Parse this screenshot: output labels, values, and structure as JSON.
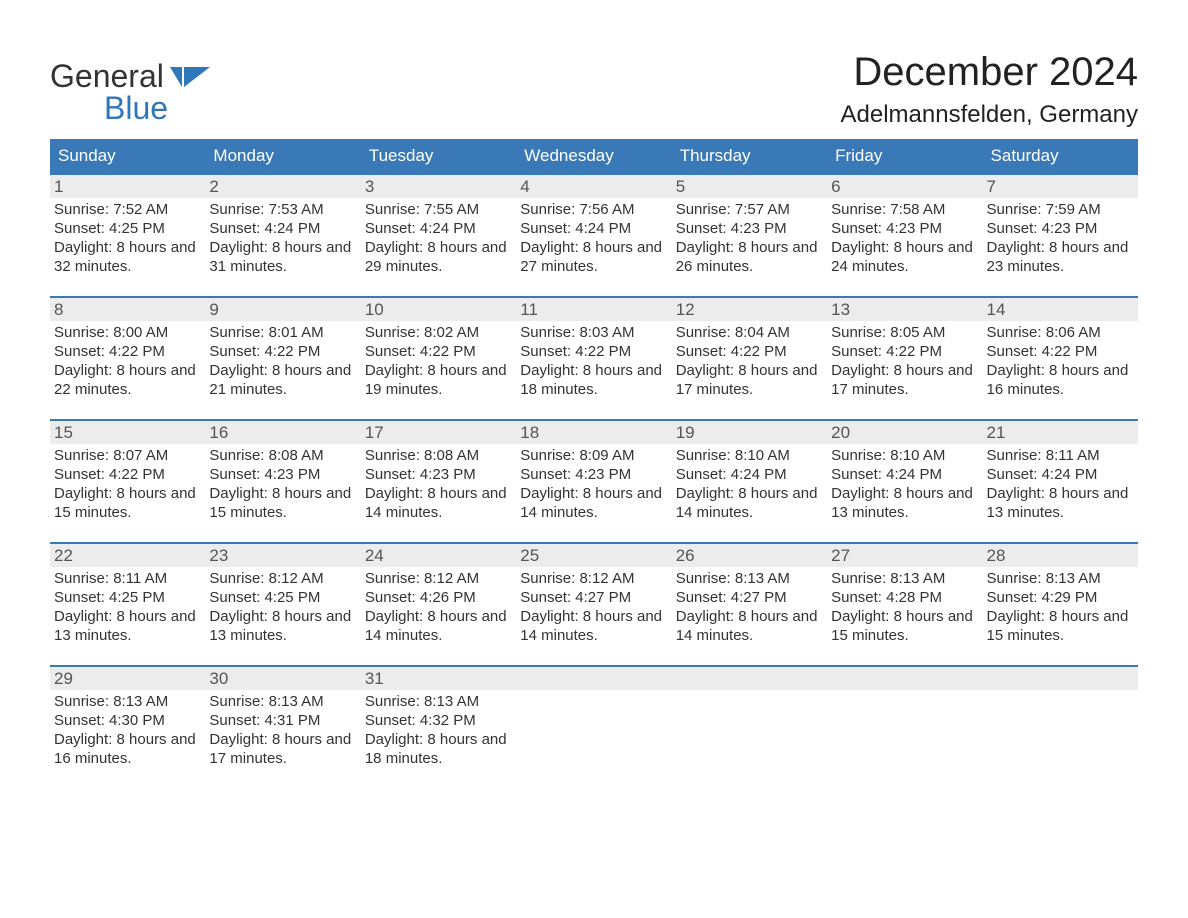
{
  "brand": {
    "word1": "General",
    "word2": "Blue",
    "accent_hex": "#2f77b8"
  },
  "header": {
    "month_title": "December 2024",
    "location": "Adelmannsfelden, Germany"
  },
  "styling": {
    "header_bg": "#3a79b7",
    "header_text": "#ffffff",
    "week_border": "#3a79b7",
    "daynum_bg": "#ececec",
    "daynum_text": "#555555",
    "body_text": "#333333",
    "page_bg": "#ffffff",
    "fontsize_title": 40,
    "fontsize_location": 24,
    "fontsize_header": 17,
    "fontsize_body": 15
  },
  "day_labels": [
    "Sunday",
    "Monday",
    "Tuesday",
    "Wednesday",
    "Thursday",
    "Friday",
    "Saturday"
  ],
  "weeks": [
    [
      {
        "n": "1",
        "sr": "Sunrise: 7:52 AM",
        "ss": "Sunset: 4:25 PM",
        "dl": "Daylight: 8 hours and 32 minutes."
      },
      {
        "n": "2",
        "sr": "Sunrise: 7:53 AM",
        "ss": "Sunset: 4:24 PM",
        "dl": "Daylight: 8 hours and 31 minutes."
      },
      {
        "n": "3",
        "sr": "Sunrise: 7:55 AM",
        "ss": "Sunset: 4:24 PM",
        "dl": "Daylight: 8 hours and 29 minutes."
      },
      {
        "n": "4",
        "sr": "Sunrise: 7:56 AM",
        "ss": "Sunset: 4:24 PM",
        "dl": "Daylight: 8 hours and 27 minutes."
      },
      {
        "n": "5",
        "sr": "Sunrise: 7:57 AM",
        "ss": "Sunset: 4:23 PM",
        "dl": "Daylight: 8 hours and 26 minutes."
      },
      {
        "n": "6",
        "sr": "Sunrise: 7:58 AM",
        "ss": "Sunset: 4:23 PM",
        "dl": "Daylight: 8 hours and 24 minutes."
      },
      {
        "n": "7",
        "sr": "Sunrise: 7:59 AM",
        "ss": "Sunset: 4:23 PM",
        "dl": "Daylight: 8 hours and 23 minutes."
      }
    ],
    [
      {
        "n": "8",
        "sr": "Sunrise: 8:00 AM",
        "ss": "Sunset: 4:22 PM",
        "dl": "Daylight: 8 hours and 22 minutes."
      },
      {
        "n": "9",
        "sr": "Sunrise: 8:01 AM",
        "ss": "Sunset: 4:22 PM",
        "dl": "Daylight: 8 hours and 21 minutes."
      },
      {
        "n": "10",
        "sr": "Sunrise: 8:02 AM",
        "ss": "Sunset: 4:22 PM",
        "dl": "Daylight: 8 hours and 19 minutes."
      },
      {
        "n": "11",
        "sr": "Sunrise: 8:03 AM",
        "ss": "Sunset: 4:22 PM",
        "dl": "Daylight: 8 hours and 18 minutes."
      },
      {
        "n": "12",
        "sr": "Sunrise: 8:04 AM",
        "ss": "Sunset: 4:22 PM",
        "dl": "Daylight: 8 hours and 17 minutes."
      },
      {
        "n": "13",
        "sr": "Sunrise: 8:05 AM",
        "ss": "Sunset: 4:22 PM",
        "dl": "Daylight: 8 hours and 17 minutes."
      },
      {
        "n": "14",
        "sr": "Sunrise: 8:06 AM",
        "ss": "Sunset: 4:22 PM",
        "dl": "Daylight: 8 hours and 16 minutes."
      }
    ],
    [
      {
        "n": "15",
        "sr": "Sunrise: 8:07 AM",
        "ss": "Sunset: 4:22 PM",
        "dl": "Daylight: 8 hours and 15 minutes."
      },
      {
        "n": "16",
        "sr": "Sunrise: 8:08 AM",
        "ss": "Sunset: 4:23 PM",
        "dl": "Daylight: 8 hours and 15 minutes."
      },
      {
        "n": "17",
        "sr": "Sunrise: 8:08 AM",
        "ss": "Sunset: 4:23 PM",
        "dl": "Daylight: 8 hours and 14 minutes."
      },
      {
        "n": "18",
        "sr": "Sunrise: 8:09 AM",
        "ss": "Sunset: 4:23 PM",
        "dl": "Daylight: 8 hours and 14 minutes."
      },
      {
        "n": "19",
        "sr": "Sunrise: 8:10 AM",
        "ss": "Sunset: 4:24 PM",
        "dl": "Daylight: 8 hours and 14 minutes."
      },
      {
        "n": "20",
        "sr": "Sunrise: 8:10 AM",
        "ss": "Sunset: 4:24 PM",
        "dl": "Daylight: 8 hours and 13 minutes."
      },
      {
        "n": "21",
        "sr": "Sunrise: 8:11 AM",
        "ss": "Sunset: 4:24 PM",
        "dl": "Daylight: 8 hours and 13 minutes."
      }
    ],
    [
      {
        "n": "22",
        "sr": "Sunrise: 8:11 AM",
        "ss": "Sunset: 4:25 PM",
        "dl": "Daylight: 8 hours and 13 minutes."
      },
      {
        "n": "23",
        "sr": "Sunrise: 8:12 AM",
        "ss": "Sunset: 4:25 PM",
        "dl": "Daylight: 8 hours and 13 minutes."
      },
      {
        "n": "24",
        "sr": "Sunrise: 8:12 AM",
        "ss": "Sunset: 4:26 PM",
        "dl": "Daylight: 8 hours and 14 minutes."
      },
      {
        "n": "25",
        "sr": "Sunrise: 8:12 AM",
        "ss": "Sunset: 4:27 PM",
        "dl": "Daylight: 8 hours and 14 minutes."
      },
      {
        "n": "26",
        "sr": "Sunrise: 8:13 AM",
        "ss": "Sunset: 4:27 PM",
        "dl": "Daylight: 8 hours and 14 minutes."
      },
      {
        "n": "27",
        "sr": "Sunrise: 8:13 AM",
        "ss": "Sunset: 4:28 PM",
        "dl": "Daylight: 8 hours and 15 minutes."
      },
      {
        "n": "28",
        "sr": "Sunrise: 8:13 AM",
        "ss": "Sunset: 4:29 PM",
        "dl": "Daylight: 8 hours and 15 minutes."
      }
    ],
    [
      {
        "n": "29",
        "sr": "Sunrise: 8:13 AM",
        "ss": "Sunset: 4:30 PM",
        "dl": "Daylight: 8 hours and 16 minutes."
      },
      {
        "n": "30",
        "sr": "Sunrise: 8:13 AM",
        "ss": "Sunset: 4:31 PM",
        "dl": "Daylight: 8 hours and 17 minutes."
      },
      {
        "n": "31",
        "sr": "Sunrise: 8:13 AM",
        "ss": "Sunset: 4:32 PM",
        "dl": "Daylight: 8 hours and 18 minutes."
      },
      null,
      null,
      null,
      null
    ]
  ]
}
